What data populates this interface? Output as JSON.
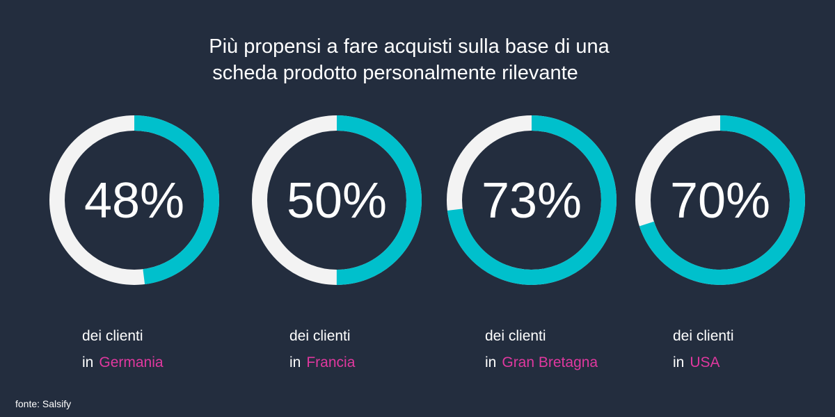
{
  "title_lines": [
    "Più propensi a fare acquisti sulla base di una",
    "scheda prodotto personalmente rilevante"
  ],
  "chart_data": [
    {
      "type": "donut",
      "values": [
        48
      ],
      "value_labels": [
        "48%"
      ],
      "color": "#00c0cc",
      "track_color": "#f3f3f3",
      "caption": "dei clienti",
      "prefix": "in",
      "country": "Germania"
    },
    {
      "type": "donut",
      "values": [
        50
      ],
      "value_labels": [
        "50%"
      ],
      "color": "#00c0cc",
      "track_color": "#f3f3f3",
      "caption": "dei clienti",
      "prefix": "in",
      "country": "Francia"
    },
    {
      "type": "donut",
      "values": [
        73
      ],
      "value_labels": [
        "73%"
      ],
      "color": "#00c0cc",
      "track_color": "#f3f3f3",
      "caption": "dei clienti",
      "prefix": "in",
      "country": "Gran Bretagna"
    },
    {
      "type": "donut",
      "values": [
        70
      ],
      "value_labels": [
        "70%"
      ],
      "color": "#00c0cc",
      "track_color": "#f3f3f3",
      "caption": "dei clienti",
      "prefix": "in",
      "country": "USA"
    }
  ],
  "source": "fonte: Salsify"
}
